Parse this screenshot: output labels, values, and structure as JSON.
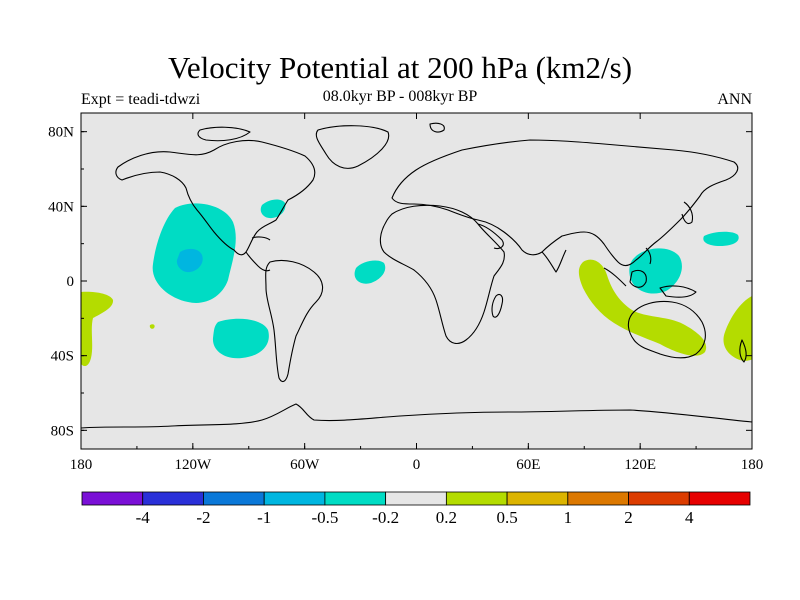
{
  "title": "Velocity Potential at 200 hPa (km2/s)",
  "expt_label": "Expt = teadi-tdwzi",
  "period_label": "08.0kyr BP - 008kyr BP",
  "season_label": "ANN",
  "map": {
    "projection": "cylindrical-equidistant",
    "lon_range": [
      -180,
      180
    ],
    "lat_range": [
      -90,
      90
    ],
    "ocean_color": "#e6e6e6",
    "coast_color": "#000000",
    "lat_ticks": [
      {
        "lat": 80,
        "label": "80N"
      },
      {
        "lat": 40,
        "label": "40N"
      },
      {
        "lat": 0,
        "label": "0"
      },
      {
        "lat": -40,
        "label": "40S"
      },
      {
        "lat": -80,
        "label": "80S"
      }
    ],
    "lon_ticks": [
      {
        "lon": -180,
        "label": "180"
      },
      {
        "lon": -120,
        "label": "120W"
      },
      {
        "lon": -60,
        "label": "60W"
      },
      {
        "lon": 0,
        "label": "0"
      },
      {
        "lon": 60,
        "label": "60E"
      },
      {
        "lon": 120,
        "label": "120E"
      },
      {
        "lon": 180,
        "label": "180"
      }
    ]
  },
  "colorbar": {
    "colors": [
      "#7a10d6",
      "#2a30d8",
      "#0a78d8",
      "#00b6e0",
      "#00dcc4",
      "#e6e6e6",
      "#b4dc00",
      "#dcb400",
      "#dc7800",
      "#dc3c00",
      "#e60000"
    ],
    "labels": [
      "-4",
      "-2",
      "-1",
      "-0.5",
      "-0.2",
      "0.2",
      "0.5",
      "1",
      "2",
      "4"
    ]
  }
}
